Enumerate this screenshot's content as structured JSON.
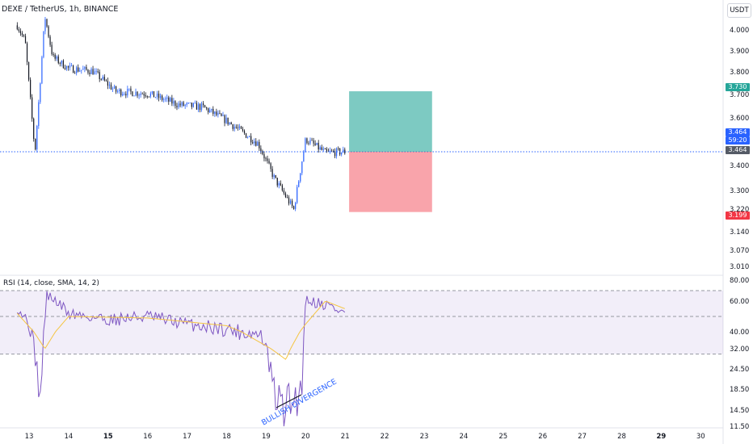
{
  "header": {
    "symbol": "DEXE / TetherUS, 1h, BINANCE",
    "rsi_label": "RSI (14, close, SMA, 14, 2)",
    "currency": "USDT"
  },
  "badges": {
    "target": "3.730",
    "last_price": "3.464",
    "countdown": "59:20",
    "last_price_2": "3.464",
    "stop": "3.199"
  },
  "annotation": "BULLISH DIVERGENCE",
  "colors": {
    "up": "#2962ff",
    "down": "#131722",
    "profit": "#26a69a",
    "loss": "#f23645",
    "rsi": "#7e57c2",
    "rsi_ma": "#f5c542",
    "price_line": "#2962ff"
  },
  "chart_data": [
    {
      "type": "candlestick",
      "title": "DEXE / TetherUS, 1h, BINANCE",
      "x_tick_labels": [
        "13",
        "14",
        "15",
        "16",
        "17",
        "18",
        "19",
        "20",
        "21",
        "22",
        "23",
        "24",
        "25",
        "26",
        "27",
        "28",
        "29",
        "30"
      ],
      "y_tick_labels": [
        "4.000",
        "3.900",
        "3.800",
        "3.700",
        "3.600",
        "3.400",
        "3.300",
        "3.220",
        "3.140",
        "3.070",
        "3.010"
      ],
      "ylim": [
        2.97,
        4.09
      ],
      "ohlc_hourly_estimated": {
        "start_day": 12.7,
        "hours_per_candle": 1,
        "note": "approximate values read from chart",
        "key_points": [
          {
            "day": 12.7,
            "price": 4.02
          },
          {
            "day": 12.9,
            "price": 3.95
          },
          {
            "day": 13.15,
            "price": 3.46
          },
          {
            "day": 13.4,
            "price": 4.06
          },
          {
            "day": 13.6,
            "price": 3.88
          },
          {
            "day": 14.0,
            "price": 3.83
          },
          {
            "day": 14.6,
            "price": 3.82
          },
          {
            "day": 15.2,
            "price": 3.73
          },
          {
            "day": 16.0,
            "price": 3.72
          },
          {
            "day": 16.8,
            "price": 3.67
          },
          {
            "day": 17.4,
            "price": 3.66
          },
          {
            "day": 18.0,
            "price": 3.6
          },
          {
            "day": 18.8,
            "price": 3.5
          },
          {
            "day": 19.2,
            "price": 3.35
          },
          {
            "day": 19.7,
            "price": 3.21
          },
          {
            "day": 20.0,
            "price": 3.52
          },
          {
            "day": 20.5,
            "price": 3.46
          },
          {
            "day": 21.0,
            "price": 3.464
          }
        ]
      },
      "last_price": 3.464,
      "position": {
        "entry": 3.464,
        "target": 3.73,
        "stop": 3.199,
        "x_start_day": 21.1,
        "x_end_day": 23.2
      }
    },
    {
      "type": "line",
      "title": "RSI (14, close, SMA, 14, 2)",
      "y_tick_labels": [
        "80.00",
        "60.00",
        "40.00",
        "32.00",
        "24.50",
        "18.50",
        "14.50",
        "11.50"
      ],
      "bands": {
        "upper": 70,
        "middle": 50,
        "lower": 30
      },
      "ylim": [
        9,
        82
      ],
      "series": [
        {
          "name": "RSI",
          "key_points": [
            {
              "day": 12.7,
              "value": 57
            },
            {
              "day": 13.0,
              "value": 45
            },
            {
              "day": 13.3,
              "value": 15
            },
            {
              "day": 13.45,
              "value": 66
            },
            {
              "day": 14.0,
              "value": 52
            },
            {
              "day": 15.0,
              "value": 48
            },
            {
              "day": 16.0,
              "value": 50
            },
            {
              "day": 17.0,
              "value": 45
            },
            {
              "day": 18.0,
              "value": 42
            },
            {
              "day": 18.9,
              "value": 38
            },
            {
              "day": 19.2,
              "value": 18
            },
            {
              "day": 19.4,
              "value": 15
            },
            {
              "day": 19.9,
              "value": 18
            },
            {
              "day": 20.0,
              "value": 62
            },
            {
              "day": 20.5,
              "value": 58
            },
            {
              "day": 21.0,
              "value": 52
            }
          ]
        },
        {
          "name": "RSI-based MA",
          "key_points": [
            {
              "day": 12.7,
              "value": 52
            },
            {
              "day": 13.4,
              "value": 32
            },
            {
              "day": 14.0,
              "value": 50
            },
            {
              "day": 16.0,
              "value": 49
            },
            {
              "day": 18.0,
              "value": 44
            },
            {
              "day": 19.5,
              "value": 28
            },
            {
              "day": 20.0,
              "value": 45
            },
            {
              "day": 20.5,
              "value": 60
            },
            {
              "day": 21.0,
              "value": 55
            }
          ]
        }
      ]
    }
  ]
}
